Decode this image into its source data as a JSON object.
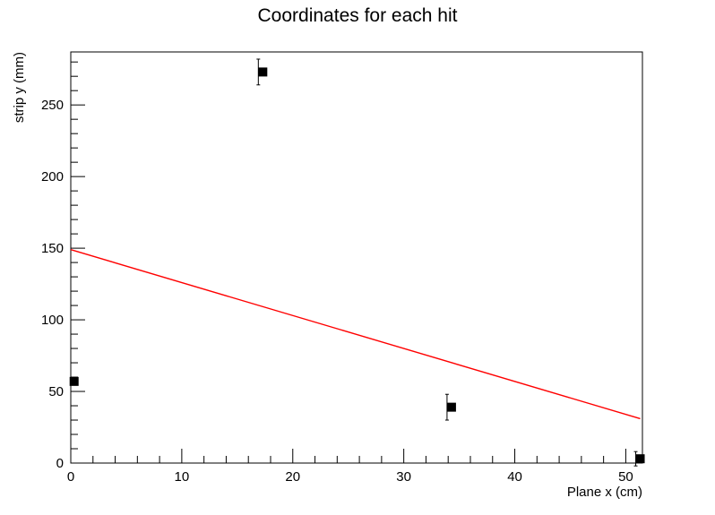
{
  "chart_data": {
    "type": "scatter",
    "title": "Coordinates for each hit",
    "xlabel": "Plane x (cm)",
    "ylabel": "strip  y (mm)",
    "xlim": [
      0,
      51.5
    ],
    "ylim": [
      0,
      287
    ],
    "x_ticks": [
      0,
      10,
      20,
      30,
      40,
      50
    ],
    "y_ticks": [
      0,
      50,
      100,
      150,
      200,
      250
    ],
    "grid": false,
    "legend": "none",
    "points": [
      {
        "x": 0.3,
        "y": 57,
        "yerr": 0
      },
      {
        "x": 17.3,
        "y": 273,
        "yerr": 9
      },
      {
        "x": 34.3,
        "y": 39,
        "yerr": 9
      },
      {
        "x": 51.3,
        "y": 3,
        "yerr": 5
      }
    ],
    "fit_line": {
      "x": [
        0,
        51.3
      ],
      "y": [
        149,
        31
      ],
      "color": "#ff0000"
    },
    "point_color": "#000000"
  }
}
